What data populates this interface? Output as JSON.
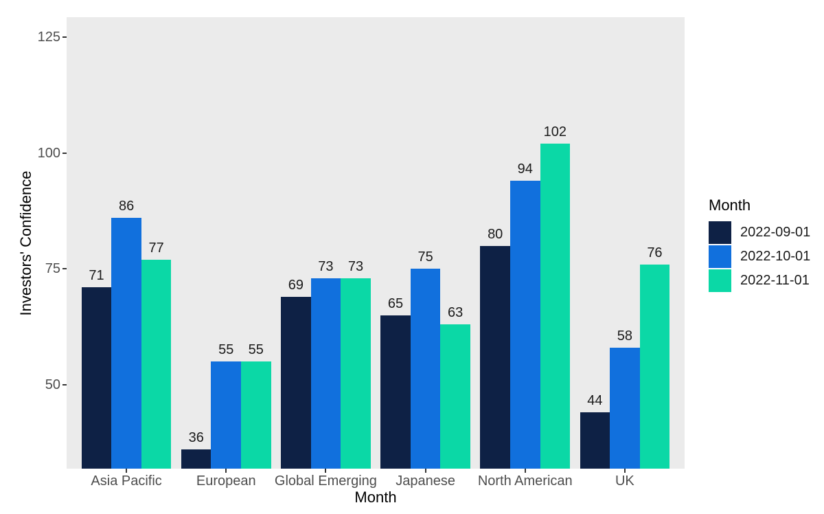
{
  "chart_data": {
    "type": "bar",
    "title": "",
    "xlabel": "Month",
    "ylabel": "Investors' Confidence",
    "categories": [
      "Asia Pacific",
      "European",
      "Global Emerging",
      "Japanese",
      "North American",
      "UK"
    ],
    "series": [
      {
        "name": "2022-09-01",
        "color": "#0e2145",
        "values": [
          71,
          36,
          69,
          65,
          80,
          44
        ]
      },
      {
        "name": "2022-10-01",
        "color": "#1170dd",
        "values": [
          86,
          55,
          73,
          75,
          94,
          58
        ]
      },
      {
        "name": "2022-11-01",
        "color": "#0bd8a6",
        "values": [
          77,
          55,
          73,
          63,
          102,
          76
        ]
      }
    ],
    "bar_value_labels": true,
    "y_ticks": [
      50,
      75,
      100,
      125
    ],
    "y_axis_min": 31.9,
    "y_axis_max": 129.3,
    "grid": false,
    "panel_bg": "#ebebeb",
    "legend": {
      "title": "Month",
      "position": "right"
    }
  }
}
